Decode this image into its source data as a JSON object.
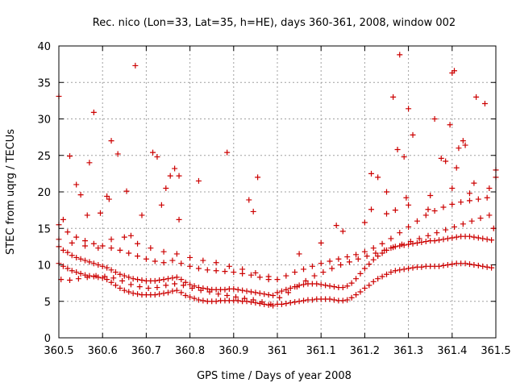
{
  "chart_data": {
    "type": "scatter",
    "title": "Rec. nico (Lon=33, Lat=35, h=HE), days 360-361, 2008, window 002",
    "xlabel": "GPS time / Days of year 2008",
    "ylabel": "STEC from uqrg / TECUs",
    "xlim": [
      360.5,
      361.5
    ],
    "ylim": [
      0,
      40
    ],
    "x_ticks": [
      "360.5",
      "360.6",
      "360.7",
      "360.8",
      "360.9",
      "361",
      "361.1",
      "361.2",
      "361.3",
      "361.4",
      "361.5"
    ],
    "x_tick_values": [
      360.5,
      360.6,
      360.7,
      360.8,
      360.9,
      361.0,
      361.1,
      361.2,
      361.3,
      361.4,
      361.5
    ],
    "y_ticks": [
      "0",
      "5",
      "10",
      "15",
      "20",
      "25",
      "30",
      "35",
      "40"
    ],
    "y_tick_values": [
      0,
      5,
      10,
      15,
      20,
      25,
      30,
      35,
      40
    ],
    "grid": true,
    "marker": "plus",
    "color": "#cc0000",
    "series": [
      {
        "name": "STEC",
        "x": [
          360.5,
          360.51,
          360.52,
          360.53,
          360.54,
          360.55,
          360.56,
          360.57,
          360.58,
          360.59,
          360.6,
          360.61,
          360.62,
          360.63,
          360.64,
          360.65,
          360.66,
          360.67,
          360.68,
          360.69,
          360.7,
          360.71,
          360.72,
          360.73,
          360.74,
          360.75,
          360.76,
          360.77,
          360.78,
          360.79,
          360.8,
          360.81,
          360.82,
          360.83,
          360.84,
          360.85,
          360.86,
          360.87,
          360.88,
          360.89,
          360.9,
          360.91,
          360.92,
          360.93,
          360.94,
          360.95,
          360.96,
          360.97,
          360.98,
          360.99,
          360.5,
          360.51,
          360.52,
          360.53,
          360.54,
          360.55,
          360.56,
          360.57,
          360.58,
          360.59,
          360.6,
          360.61,
          360.62,
          360.63,
          360.64,
          360.65,
          360.66,
          360.67,
          360.68,
          360.69,
          360.7,
          360.71,
          360.72,
          360.73,
          360.74,
          360.75,
          360.76,
          360.77,
          360.78,
          360.79,
          360.8,
          360.81,
          360.82,
          360.83,
          360.84,
          360.85,
          360.86,
          360.87,
          360.88,
          360.89,
          360.9,
          360.91,
          360.92,
          360.93,
          360.94,
          360.95,
          360.96,
          360.97,
          360.98,
          360.99,
          360.5,
          360.52,
          360.54,
          360.56,
          360.58,
          360.6,
          360.62,
          360.64,
          360.66,
          360.68,
          360.7,
          360.72,
          360.74,
          360.76,
          360.78,
          360.8,
          360.82,
          360.84,
          360.86,
          360.88,
          360.9,
          360.92,
          360.94,
          360.96,
          360.98,
          360.505,
          360.525,
          360.545,
          360.565,
          360.585,
          360.605,
          360.625,
          360.645,
          360.665,
          360.685,
          360.705,
          360.725,
          360.745,
          360.765,
          360.785,
          360.805,
          360.825,
          360.845,
          360.865,
          360.885,
          360.905,
          360.925,
          360.945,
          360.965,
          360.985,
          360.5,
          360.53,
          360.56,
          360.59,
          360.62,
          360.65,
          360.68,
          360.71,
          360.74,
          360.77,
          360.8,
          360.83,
          360.86,
          360.89,
          360.92,
          360.95,
          360.98,
          360.5,
          360.51,
          360.525,
          360.54,
          360.55,
          360.565,
          360.57,
          360.58,
          360.595,
          360.61,
          360.615,
          360.62,
          360.635,
          360.655,
          360.665,
          360.675,
          360.69,
          360.715,
          360.725,
          360.735,
          360.745,
          360.755,
          360.765,
          360.775,
          360.82,
          360.885,
          360.935,
          360.945,
          360.955,
          360.775,
          361.0,
          361.01,
          361.02,
          361.03,
          361.04,
          361.05,
          361.06,
          361.07,
          361.08,
          361.09,
          361.1,
          361.11,
          361.12,
          361.13,
          361.14,
          361.15,
          361.16,
          361.17,
          361.18,
          361.19,
          361.2,
          361.21,
          361.22,
          361.23,
          361.24,
          361.25,
          361.26,
          361.27,
          361.28,
          361.29,
          361.3,
          361.31,
          361.32,
          361.33,
          361.34,
          361.35,
          361.36,
          361.37,
          361.38,
          361.39,
          361.4,
          361.41,
          361.42,
          361.43,
          361.44,
          361.45,
          361.46,
          361.47,
          361.48,
          361.49,
          361.0,
          361.01,
          361.02,
          361.03,
          361.04,
          361.05,
          361.06,
          361.07,
          361.08,
          361.09,
          361.1,
          361.11,
          361.12,
          361.13,
          361.14,
          361.15,
          361.16,
          361.17,
          361.18,
          361.19,
          361.2,
          361.21,
          361.22,
          361.23,
          361.24,
          361.25,
          361.26,
          361.27,
          361.28,
          361.29,
          361.3,
          361.31,
          361.32,
          361.33,
          361.34,
          361.35,
          361.36,
          361.37,
          361.38,
          361.39,
          361.4,
          361.41,
          361.42,
          361.43,
          361.44,
          361.45,
          361.46,
          361.47,
          361.48,
          361.49,
          361.005,
          361.025,
          361.045,
          361.065,
          361.085,
          361.105,
          361.125,
          361.145,
          361.165,
          361.185,
          361.205,
          361.225,
          361.245,
          361.265,
          361.285,
          361.305,
          361.325,
          361.345,
          361.365,
          361.385,
          361.405,
          361.425,
          361.445,
          361.465,
          361.485,
          361.0,
          361.02,
          361.04,
          361.06,
          361.08,
          361.1,
          361.12,
          361.14,
          361.16,
          361.18,
          361.2,
          361.22,
          361.24,
          361.26,
          361.28,
          361.3,
          361.32,
          361.34,
          361.36,
          361.38,
          361.4,
          361.42,
          361.44,
          361.46,
          361.48,
          361.05,
          361.1,
          361.15,
          361.2,
          361.25,
          361.3,
          361.35,
          361.4,
          361.45,
          361.5,
          361.215,
          361.23,
          361.25,
          361.265,
          361.27,
          361.275,
          361.28,
          361.29,
          361.295,
          361.3,
          361.31,
          361.345,
          361.36,
          361.375,
          361.385,
          361.395,
          361.4,
          361.405,
          361.41,
          361.415,
          361.425,
          361.43,
          361.44,
          361.455,
          361.475,
          361.485,
          361.495,
          361.5,
          361.135,
          361.215
        ],
        "y": [
          10.2,
          9.8,
          9.5,
          9.2,
          9.0,
          8.8,
          8.6,
          8.5,
          8.4,
          8.3,
          8.2,
          8.0,
          7.6,
          7.2,
          6.8,
          6.5,
          6.3,
          6.1,
          6.0,
          5.9,
          5.9,
          5.9,
          5.9,
          6.0,
          6.1,
          6.2,
          6.4,
          6.5,
          6.2,
          5.8,
          5.6,
          5.4,
          5.2,
          5.1,
          5.0,
          5.0,
          5.0,
          5.1,
          5.1,
          5.1,
          5.1,
          5.1,
          5.0,
          5.0,
          4.9,
          4.8,
          4.7,
          4.6,
          4.5,
          4.4,
          12.5,
          12.0,
          11.7,
          11.3,
          11.0,
          10.8,
          10.6,
          10.4,
          10.2,
          10.0,
          9.8,
          9.6,
          9.3,
          9.0,
          8.7,
          8.5,
          8.3,
          8.1,
          8.0,
          7.9,
          7.8,
          7.8,
          7.8,
          7.9,
          8.0,
          8.1,
          8.2,
          8.3,
          8.0,
          7.6,
          7.3,
          7.1,
          6.9,
          6.8,
          6.7,
          6.6,
          6.6,
          6.6,
          6.6,
          6.7,
          6.7,
          6.6,
          6.5,
          6.4,
          6.3,
          6.2,
          6.1,
          6.0,
          5.9,
          5.8,
          15.5,
          14.5,
          13.8,
          13.3,
          12.9,
          12.6,
          12.3,
          12.0,
          11.6,
          11.2,
          10.8,
          10.5,
          10.3,
          10.6,
          10.2,
          9.8,
          9.5,
          9.3,
          9.2,
          9.1,
          9.0,
          8.8,
          8.6,
          8.3,
          8.0,
          8.0,
          7.9,
          8.1,
          8.3,
          8.5,
          8.4,
          8.2,
          7.8,
          7.3,
          7.0,
          6.8,
          6.9,
          7.2,
          7.4,
          7.2,
          6.8,
          6.5,
          6.3,
          6.0,
          5.8,
          5.6,
          5.4,
          5.2,
          4.9,
          4.6,
          13.5,
          13.0,
          12.6,
          12.3,
          13.5,
          13.8,
          12.9,
          12.3,
          11.8,
          11.5,
          11.0,
          10.6,
          10.3,
          9.8,
          9.4,
          8.9,
          8.4,
          33.1,
          16.2,
          24.9,
          21.0,
          19.6,
          16.8,
          24.0,
          30.9,
          17.1,
          19.4,
          19.0,
          27.0,
          25.2,
          20.1,
          14.0,
          37.3,
          16.8,
          25.4,
          24.8,
          18.2,
          20.5,
          22.2,
          23.2,
          16.2,
          21.5,
          25.4,
          18.9,
          17.3,
          22.0,
          22.2,
          4.6,
          4.6,
          4.7,
          4.8,
          4.9,
          5.0,
          5.1,
          5.2,
          5.2,
          5.3,
          5.3,
          5.3,
          5.3,
          5.2,
          5.1,
          5.1,
          5.2,
          5.5,
          5.9,
          6.3,
          6.8,
          7.2,
          7.7,
          8.1,
          8.4,
          8.7,
          9.0,
          9.2,
          9.3,
          9.4,
          9.5,
          9.6,
          9.7,
          9.7,
          9.8,
          9.8,
          9.8,
          9.8,
          9.9,
          10.0,
          10.1,
          10.2,
          10.2,
          10.2,
          10.1,
          10.0,
          9.9,
          9.8,
          9.7,
          9.6,
          6.2,
          6.4,
          6.6,
          6.8,
          7.0,
          7.2,
          7.3,
          7.4,
          7.4,
          7.4,
          7.3,
          7.2,
          7.1,
          7.0,
          6.9,
          6.9,
          7.1,
          7.5,
          8.1,
          8.8,
          9.5,
          10.1,
          10.7,
          11.2,
          11.6,
          12.0,
          12.3,
          12.5,
          12.6,
          12.7,
          12.8,
          12.9,
          13.0,
          13.1,
          13.2,
          13.3,
          13.3,
          13.4,
          13.5,
          13.6,
          13.7,
          13.8,
          13.9,
          13.9,
          13.9,
          13.8,
          13.7,
          13.6,
          13.5,
          13.4,
          5.5,
          6.2,
          7.0,
          7.8,
          8.5,
          9.0,
          9.5,
          10.0,
          10.4,
          10.8,
          11.2,
          11.6,
          12.0,
          12.4,
          12.8,
          13.2,
          13.6,
          14.0,
          14.4,
          14.8,
          15.2,
          15.6,
          16.0,
          16.4,
          16.8,
          8.0,
          8.5,
          9.0,
          9.4,
          9.8,
          10.2,
          10.5,
          10.8,
          11.1,
          11.4,
          11.8,
          12.3,
          12.9,
          13.6,
          14.4,
          15.2,
          16.0,
          16.8,
          17.4,
          17.9,
          18.3,
          18.6,
          18.8,
          19.0,
          19.2,
          11.5,
          13.0,
          14.6,
          15.8,
          17.0,
          18.2,
          19.5,
          20.5,
          21.2,
          22.0,
          22.5,
          22.0,
          20.0,
          33.0,
          17.5,
          25.8,
          38.8,
          24.8,
          19.2,
          31.4,
          27.8,
          17.6,
          30.0,
          24.6,
          24.2,
          29.2,
          36.3,
          36.6,
          23.3,
          26.0,
          27.0,
          26.4,
          19.8,
          33.0,
          32.1,
          20.5,
          15.0,
          23.0,
          15.4,
          17.6
        ]
      }
    ]
  }
}
